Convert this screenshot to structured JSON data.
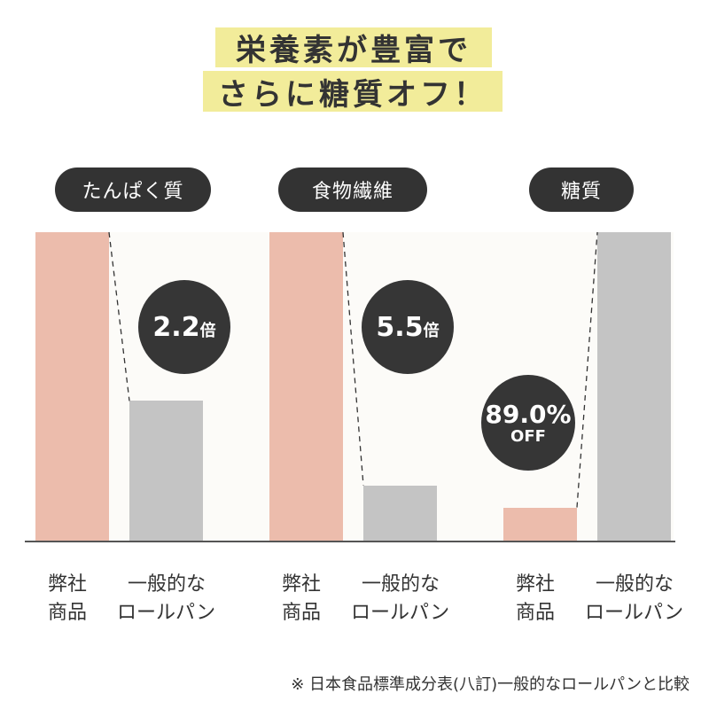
{
  "title": {
    "line1": "栄養素が豊富で",
    "line2": "さらに糖質オフ！"
  },
  "chart_data": {
    "type": "bar",
    "groups": [
      {
        "category": "たんぱく質",
        "callout": {
          "value": "2.2",
          "unit": "倍"
        },
        "ratio_company_to_general": 2.2
      },
      {
        "category": "食物繊維",
        "callout": {
          "value": "5.5",
          "unit": "倍"
        },
        "ratio_company_to_general": 5.5
      },
      {
        "category": "糖質",
        "callout": {
          "value": "89.0%",
          "unit": "OFF"
        },
        "ratio_company_to_general": 0.11
      }
    ],
    "series": [
      {
        "name": "弊社商品",
        "label_line1": "弊社",
        "label_line2": "商品",
        "color": "#ecbcac"
      },
      {
        "name": "一般的なロールパン",
        "label_line1": "一般的な",
        "label_line2": "ロールパン",
        "color": "#c4c4c4"
      }
    ],
    "grid": false,
    "legend": "none"
  },
  "footnote": "※ 日本食品標準成分表(八訂)一般的なロールパンと比較"
}
